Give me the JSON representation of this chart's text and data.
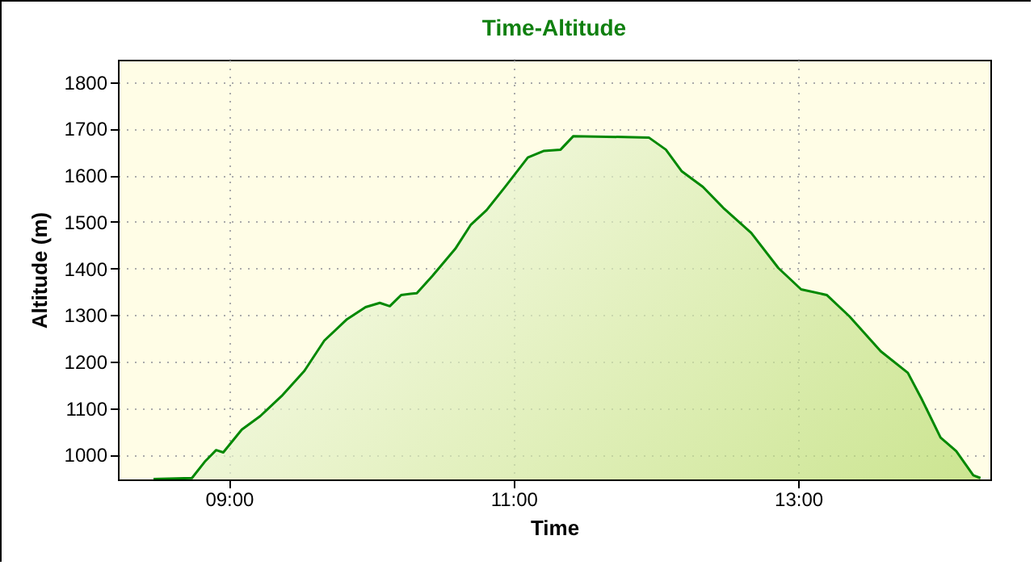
{
  "chart_data": {
    "type": "area",
    "title": "Time-Altitude",
    "xlabel": "Time",
    "ylabel": "Altitude (m)",
    "xlim": [
      8.22,
      14.35
    ],
    "xticks": [
      {
        "value": 9,
        "label": "09:00"
      },
      {
        "value": 11,
        "label": "11:00"
      },
      {
        "value": 13,
        "label": "13:00"
      }
    ],
    "ylim": [
      947,
      1848
    ],
    "yticks": [
      1000,
      1100,
      1200,
      1300,
      1400,
      1500,
      1600,
      1700,
      1800
    ],
    "grid": true,
    "line_style": "solid",
    "series": [
      {
        "color": "#008800",
        "x": [
          8.47,
          8.74,
          8.83,
          8.91,
          8.96,
          9.09,
          9.22,
          9.37,
          9.53,
          9.67,
          9.83,
          9.96,
          10.06,
          10.13,
          10.21,
          10.32,
          10.43,
          10.59,
          10.7,
          10.81,
          10.94,
          11.1,
          11.21,
          11.33,
          11.42,
          11.95,
          12.07,
          12.18,
          12.33,
          12.48,
          12.67,
          12.86,
          13.02,
          13.2,
          13.36,
          13.58,
          13.77,
          13.87,
          14.0,
          14.11,
          14.23,
          14.28
        ],
        "values": [
          948,
          950,
          985,
          1010,
          1005,
          1054,
          1083,
          1126,
          1180,
          1245,
          1291,
          1317,
          1326,
          1319,
          1343,
          1347,
          1384,
          1442,
          1494,
          1525,
          1575,
          1638,
          1652,
          1655,
          1684,
          1681,
          1655,
          1609,
          1575,
          1528,
          1476,
          1401,
          1355,
          1343,
          1297,
          1222,
          1176,
          1118,
          1037,
          1008,
          956,
          950
        ]
      }
    ]
  }
}
